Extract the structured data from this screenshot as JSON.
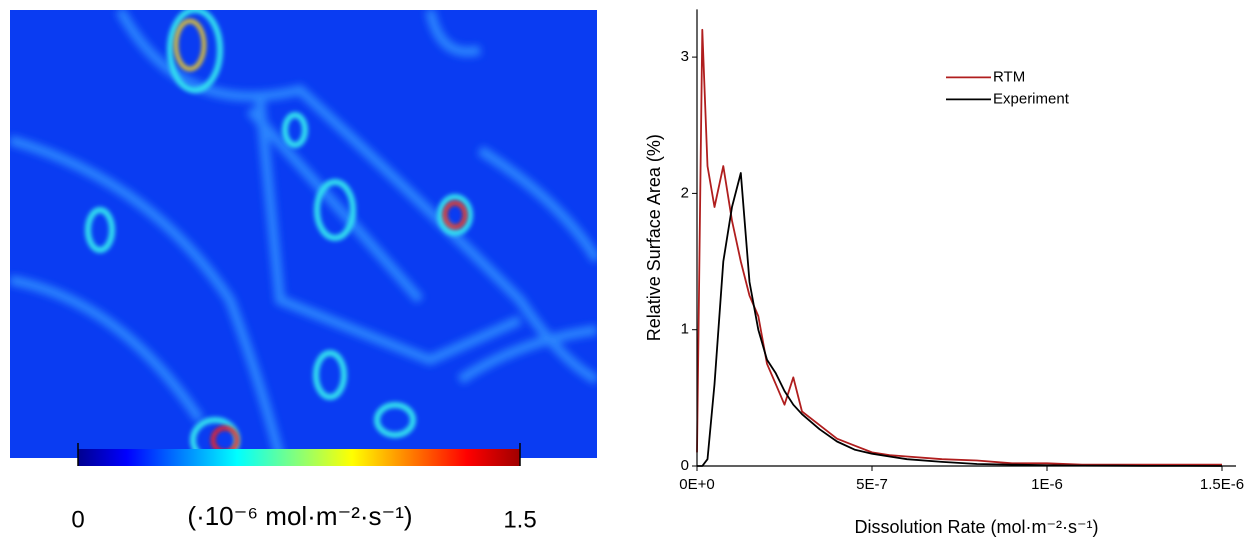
{
  "chart_data": [
    {
      "type": "colorbar",
      "colormap": "jet",
      "clim": [
        0,
        1.5
      ],
      "ticks": [
        0,
        1.5
      ],
      "label": "(·10⁻⁶ mol·m⁻²·s⁻¹)"
    },
    {
      "type": "line",
      "xlabel": "Dissolution Rate (mol·m⁻²·s⁻¹)",
      "ylabel": "Relative Surface Area (%)",
      "x": [
        0,
        1.5e-08,
        3e-08,
        5e-08,
        7.5e-08,
        1e-07,
        1.25e-07,
        1.5e-07,
        1.75e-07,
        2e-07,
        2.25e-07,
        2.5e-07,
        2.75e-07,
        3e-07,
        3.5e-07,
        4e-07,
        4.5e-07,
        5e-07,
        5.5e-07,
        6e-07,
        7e-07,
        8e-07,
        9e-07,
        1e-06,
        1.1e-06,
        1.2e-06,
        1.3e-06,
        1.4e-06,
        1.5e-06
      ],
      "series": [
        {
          "name": "RTM",
          "color": "#b01e1e",
          "values": [
            0.1,
            3.2,
            2.2,
            1.9,
            2.2,
            1.8,
            1.5,
            1.25,
            1.1,
            0.75,
            0.6,
            0.45,
            0.65,
            0.4,
            0.3,
            0.2,
            0.15,
            0.1,
            0.08,
            0.07,
            0.05,
            0.04,
            0.02,
            0.02,
            0.01,
            0.01,
            0.01,
            0.01,
            0.01
          ]
        },
        {
          "name": "Experiment",
          "color": "#000000",
          "values": [
            0,
            0,
            0.05,
            0.6,
            1.5,
            1.9,
            2.15,
            1.35,
            1.0,
            0.78,
            0.68,
            0.55,
            0.45,
            0.38,
            0.27,
            0.18,
            0.12,
            0.09,
            0.07,
            0.05,
            0.03,
            0.015,
            0.01,
            0.005,
            0.003,
            0.002,
            0.001,
            0.001,
            0
          ]
        }
      ],
      "xlim": [
        0,
        1.54e-06
      ],
      "ylim": [
        0,
        3.35
      ],
      "xticks": [
        {
          "value": 0,
          "label": "0E+0"
        },
        {
          "value": 5e-07,
          "label": "5E-7"
        },
        {
          "value": 1e-06,
          "label": "1E-6"
        },
        {
          "value": 1.5e-06,
          "label": "1.5E-6"
        }
      ],
      "yticks": [
        0,
        1,
        2,
        3
      ],
      "grid": false,
      "legend": "upper right"
    }
  ]
}
